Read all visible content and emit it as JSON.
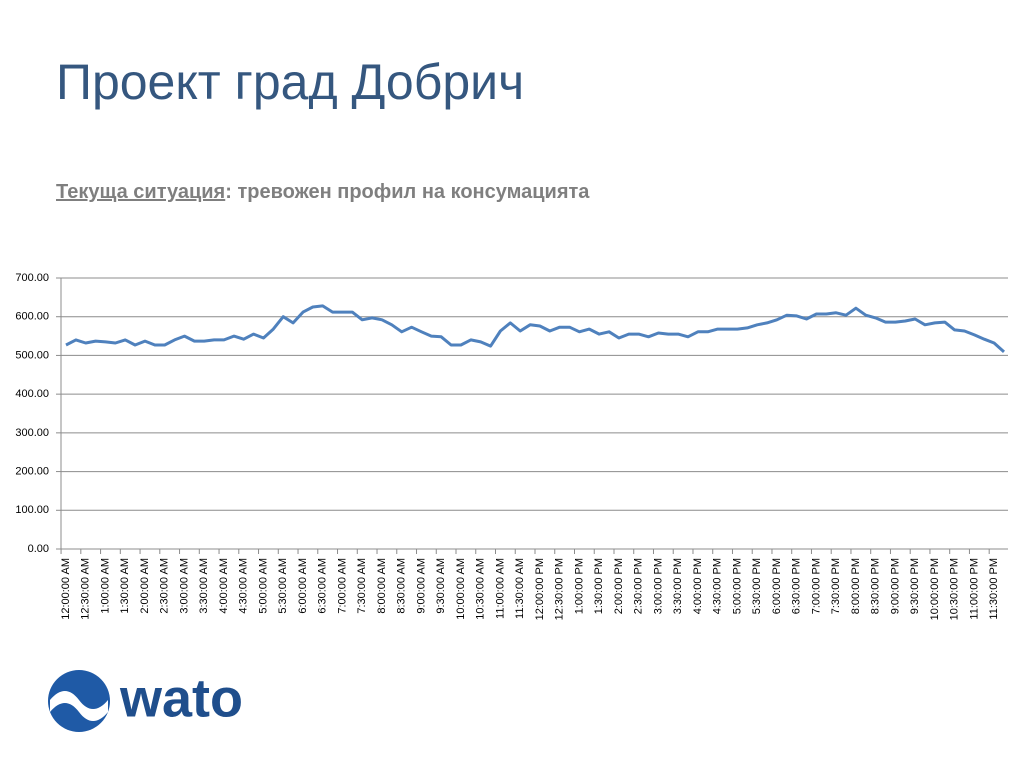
{
  "header": {
    "title": "Проект град Добрич",
    "subtitle_underlined": "Текуща ситуация",
    "subtitle_rest": ": тревожен профил на консумацията"
  },
  "chart_data": {
    "type": "line",
    "color": "#4f81bd",
    "grid": true,
    "categories": [
      "12:00:00 AM",
      null,
      "12:30:00 AM",
      null,
      "1:00:00 AM",
      null,
      "1:30:00 AM",
      null,
      "2:00:00 AM",
      null,
      "2:30:00 AM",
      null,
      "3:00:00 AM",
      null,
      "3:30:00 AM",
      null,
      "4:00:00 AM",
      null,
      "4:30:00 AM",
      null,
      "5:00:00 AM",
      null,
      "5:30:00 AM",
      null,
      "6:00:00 AM",
      null,
      "6:30:00 AM",
      null,
      "7:00:00 AM",
      null,
      "7:30:00 AM",
      null,
      "8:00:00 AM",
      null,
      "8:30:00 AM",
      null,
      "9:00:00 AM",
      null,
      "9:30:00 AM",
      null,
      "10:00:00 AM",
      null,
      "10:30:00 AM",
      null,
      "11:00:00 AM",
      null,
      "11:30:00 AM",
      null,
      "12:00:00 PM",
      null,
      "12:30:00 PM",
      null,
      "1:00:00 PM",
      null,
      "1:30:00 PM",
      null,
      "2:00:00 PM",
      null,
      "2:30:00 PM",
      null,
      "3:00:00 PM",
      null,
      "3:30:00 PM",
      null,
      "4:00:00 PM",
      null,
      "4:30:00 PM",
      null,
      "5:00:00 PM",
      null,
      "5:30:00 PM",
      null,
      "6:00:00 PM",
      null,
      "6:30:00 PM",
      null,
      "7:00:00 PM",
      null,
      "7:30:00 PM",
      null,
      "8:00:00 PM",
      null,
      "8:30:00 PM",
      null,
      "9:00:00 PM",
      null,
      "9:30:00 PM",
      null,
      "10:00:00 PM",
      null,
      "10:30:00 PM",
      null,
      "11:00:00 PM",
      null,
      "11:30:00 PM",
      null
    ],
    "values": [
      527,
      540,
      532,
      537,
      535,
      532,
      540,
      527,
      537,
      527,
      527,
      540,
      550,
      537,
      537,
      540,
      540,
      550,
      542,
      555,
      545,
      568,
      600,
      584,
      612,
      625,
      628,
      612,
      612,
      612,
      592,
      597,
      592,
      579,
      561,
      573,
      561,
      550,
      548,
      527,
      527,
      540,
      535,
      524,
      563,
      584,
      563,
      579,
      576,
      563,
      573,
      573,
      561,
      568,
      555,
      561,
      545,
      555,
      555,
      548,
      558,
      555,
      555,
      548,
      561,
      561,
      568,
      568,
      568,
      571,
      579,
      584,
      592,
      604,
      602,
      594,
      607,
      607,
      610,
      604,
      622,
      604,
      597,
      586,
      586,
      589,
      594,
      579,
      584,
      586,
      566,
      563,
      553,
      542,
      532,
      509
    ],
    "ylim": [
      0,
      700
    ],
    "yticks": [
      {
        "value": 0,
        "label": "0.00"
      },
      {
        "value": 100,
        "label": "100.00"
      },
      {
        "value": 200,
        "label": "200.00"
      },
      {
        "value": 300,
        "label": "300.00"
      },
      {
        "value": 400,
        "label": "400.00"
      },
      {
        "value": 500,
        "label": "500.00"
      },
      {
        "value": 600,
        "label": "600.00"
      },
      {
        "value": 700,
        "label": "700.00"
      }
    ]
  },
  "logo": {
    "text": "wato"
  }
}
